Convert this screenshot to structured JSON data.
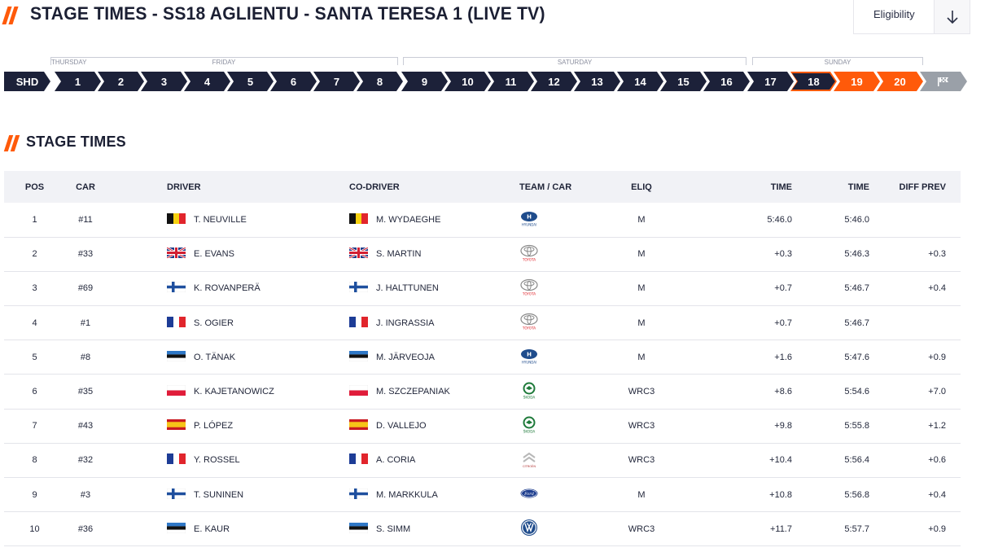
{
  "header": {
    "title": "STAGE TIMES - SS18 AGLIENTU - SANTA TERESA 1 (LIVE TV)",
    "eligibility_label": "Eligibility"
  },
  "days": [
    "THURSDAY",
    "FRIDAY",
    "SATURDAY",
    "SUNDAY"
  ],
  "stages": [
    "SHD",
    "1",
    "2",
    "3",
    "4",
    "5",
    "6",
    "7",
    "8",
    "9",
    "10",
    "11",
    "12",
    "13",
    "14",
    "15",
    "16",
    "17",
    "18",
    "19",
    "20"
  ],
  "stage_state": {
    "current": "18",
    "live": [
      "19",
      "20"
    ]
  },
  "colors": {
    "navy": "#1c2139",
    "accent": "#ff5a0a",
    "finish": "#9aa0a8"
  },
  "section": {
    "title": "STAGE TIMES"
  },
  "table": {
    "headers": {
      "pos": "POS",
      "car": "CAR",
      "driver": "DRIVER",
      "codriver": "CO-DRIVER",
      "team": "TEAM / CAR",
      "eliq": "ELIQ",
      "time": "TIME",
      "total": "TIME",
      "diff": "DIFF PREV"
    },
    "rows": [
      {
        "pos": "1",
        "car": "#11",
        "driver": "T. NEUVILLE",
        "codriver": "M. WYDAEGHE",
        "flag": "BEL",
        "brand": "hyundai-logo",
        "eliq": "M",
        "time": "5:46.0",
        "total": "5:46.0",
        "diff": ""
      },
      {
        "pos": "2",
        "car": "#33",
        "driver": "E. EVANS",
        "codriver": "S. MARTIN",
        "flag": "GBR",
        "brand": "toyota-logo",
        "eliq": "M",
        "time": "+0.3",
        "total": "5:46.3",
        "diff": "+0.3"
      },
      {
        "pos": "3",
        "car": "#69",
        "driver": "K. ROVANPERÄ",
        "codriver": "J. HALTTUNEN",
        "flag": "FIN",
        "brand": "toyota-logo",
        "eliq": "M",
        "time": "+0.7",
        "total": "5:46.7",
        "diff": "+0.4"
      },
      {
        "pos": "4",
        "car": "#1",
        "driver": "S. OGIER",
        "codriver": "J. INGRASSIA",
        "flag": "FRA",
        "brand": "toyota-logo",
        "eliq": "M",
        "time": "+0.7",
        "total": "5:46.7",
        "diff": ""
      },
      {
        "pos": "5",
        "car": "#8",
        "driver": "O. TÄNAK",
        "codriver": "M. JÄRVEOJA",
        "flag": "EST",
        "brand": "hyundai-logo",
        "eliq": "M",
        "time": "+1.6",
        "total": "5:47.6",
        "diff": "+0.9"
      },
      {
        "pos": "6",
        "car": "#35",
        "driver": "K. KAJETANOWICZ",
        "codriver": "M. SZCZEPANIAK",
        "flag": "POL",
        "brand": "skoda-logo",
        "eliq": "WRC3",
        "time": "+8.6",
        "total": "5:54.6",
        "diff": "+7.0"
      },
      {
        "pos": "7",
        "car": "#43",
        "driver": "P. LÓPEZ",
        "codriver": "D. VALLEJO",
        "flag": "ESP",
        "brand": "skoda-logo",
        "eliq": "WRC3",
        "time": "+9.8",
        "total": "5:55.8",
        "diff": "+1.2"
      },
      {
        "pos": "8",
        "car": "#32",
        "driver": "Y. ROSSEL",
        "codriver": "A. CORIA",
        "flag": "FRA",
        "brand": "citroen-logo",
        "eliq": "WRC3",
        "time": "+10.4",
        "total": "5:56.4",
        "diff": "+0.6"
      },
      {
        "pos": "9",
        "car": "#3",
        "driver": "T. SUNINEN",
        "codriver": "M. MARKKULA",
        "flag": "FIN",
        "brand": "ford-logo",
        "eliq": "M",
        "time": "+10.8",
        "total": "5:56.8",
        "diff": "+0.4"
      },
      {
        "pos": "10",
        "car": "#36",
        "driver": "E. KAUR",
        "codriver": "S. SIMM",
        "flag": "EST",
        "brand": "vw-logo",
        "eliq": "WRC3",
        "time": "+11.7",
        "total": "5:57.7",
        "diff": "+0.9"
      }
    ]
  }
}
